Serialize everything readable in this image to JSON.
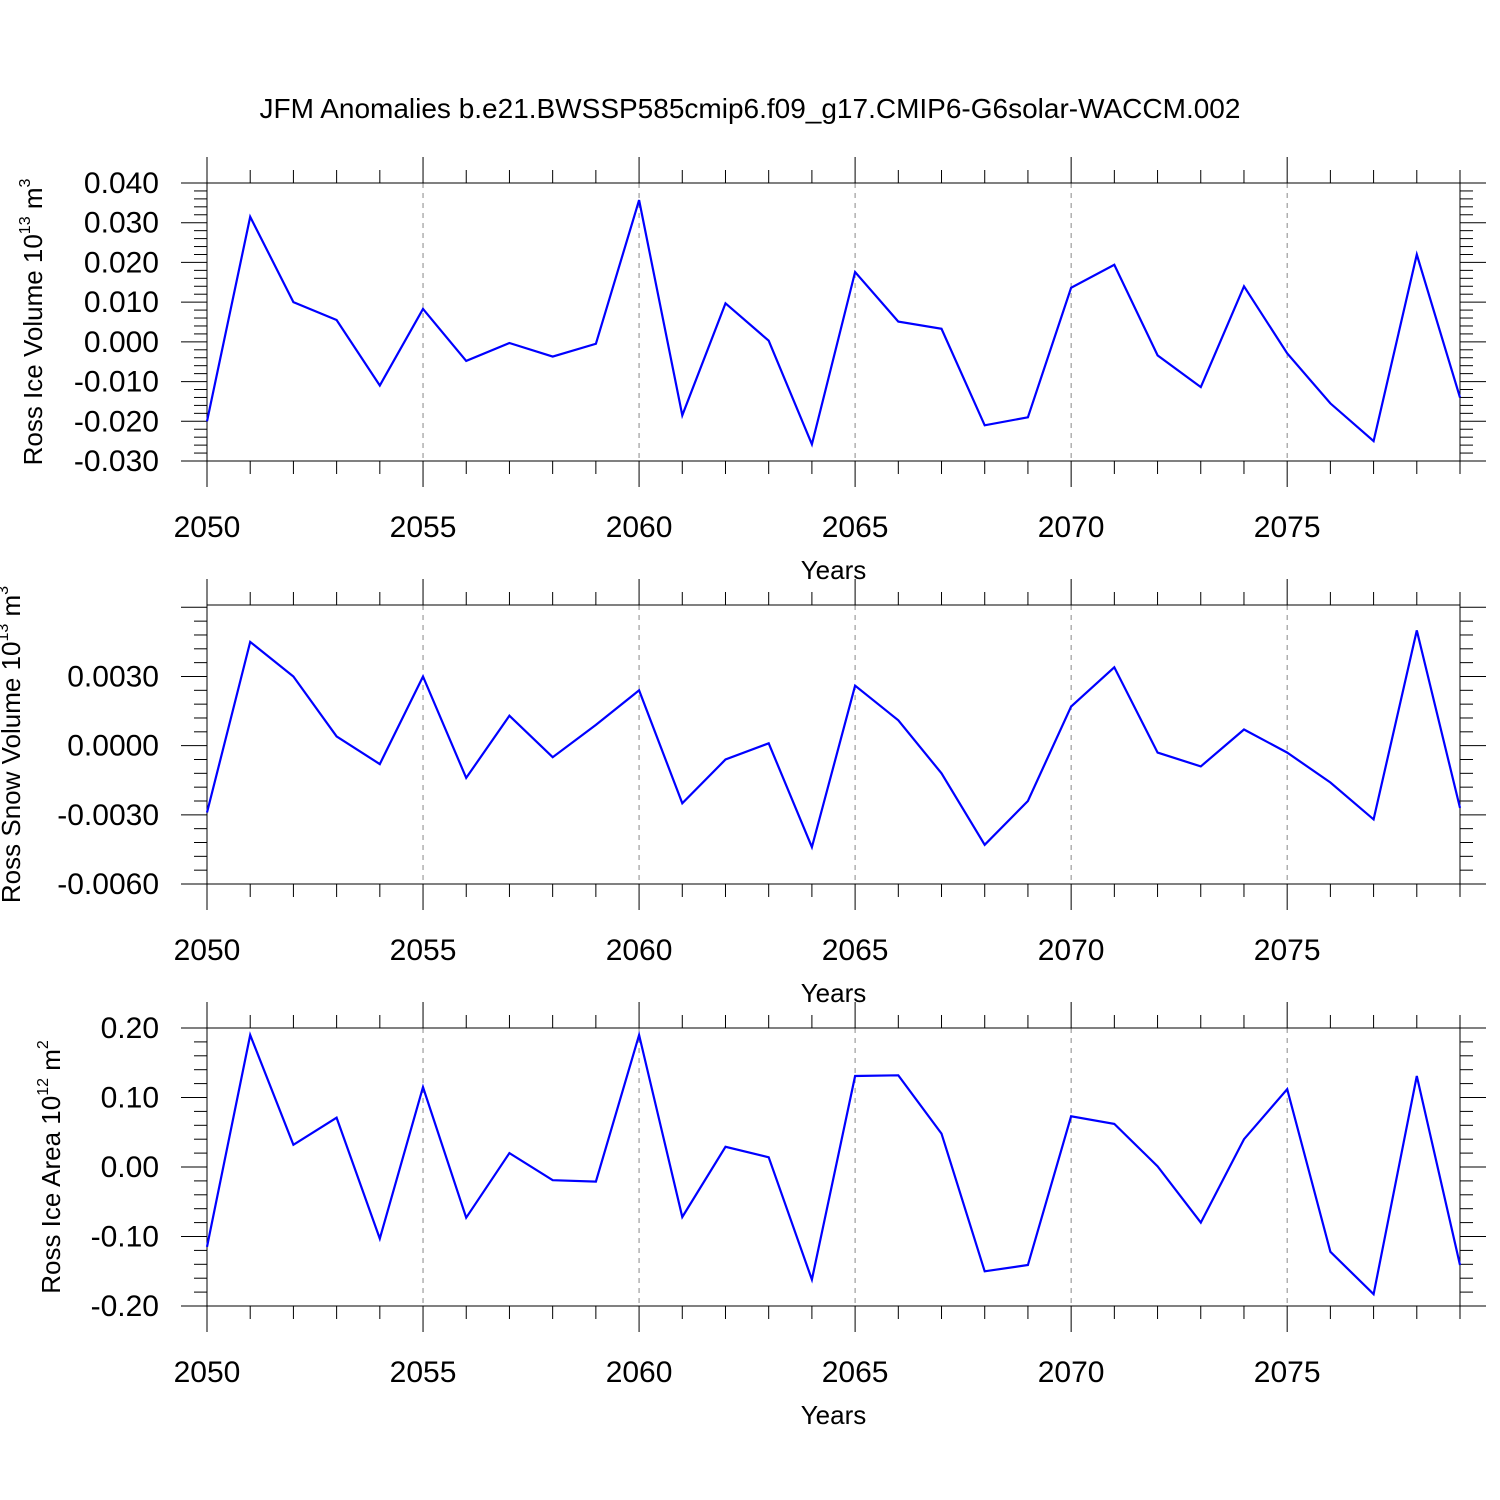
{
  "title": "JFM Anomalies b.e21.BWSSP585cmip6.f09_g17.CMIP6-G6solar-WACCM.002",
  "colors": {
    "line": "#0000ff",
    "frame": "#000000",
    "grid": "#888888"
  },
  "chart_data": [
    {
      "type": "line",
      "name": "ross-ice-volume",
      "ylabel": {
        "text": "Ross Ice Volume 10",
        "exp": "13",
        "unit": " m",
        "unit_exp": "3"
      },
      "xlabel": "Years",
      "xlim": [
        2050,
        2079
      ],
      "ylim": [
        -0.03,
        0.04
      ],
      "yticks": [
        -0.03,
        -0.02,
        -0.01,
        0.0,
        0.01,
        0.02,
        0.03,
        0.04
      ],
      "yticklabels": [
        "-0.030",
        "-0.020",
        "-0.010",
        "0.000",
        "0.010",
        "0.020",
        "0.030",
        "0.040"
      ],
      "xticks": [
        2050,
        2055,
        2060,
        2065,
        2070,
        2075
      ],
      "xticklabels": [
        "2050",
        "2055",
        "2060",
        "2065",
        "2070",
        "2075"
      ],
      "x": [
        2050,
        2051,
        2052,
        2053,
        2054,
        2055,
        2056,
        2057,
        2058,
        2059,
        2060,
        2061,
        2062,
        2063,
        2064,
        2065,
        2066,
        2067,
        2068,
        2069,
        2070,
        2071,
        2072,
        2073,
        2074,
        2075,
        2076,
        2077,
        2078,
        2079
      ],
      "values": [
        -0.02,
        0.0315,
        0.01,
        0.0055,
        -0.011,
        0.0083,
        -0.0048,
        -0.0003,
        -0.0037,
        -0.0005,
        0.0357,
        -0.0185,
        0.0097,
        0.0003,
        -0.0258,
        0.0176,
        0.0051,
        0.0033,
        -0.021,
        -0.019,
        0.0136,
        0.0194,
        -0.0034,
        -0.0114,
        0.014,
        -0.0029,
        -0.0155,
        -0.025,
        0.022,
        -0.014
      ]
    },
    {
      "type": "line",
      "name": "ross-snow-volume",
      "ylabel": {
        "text": "Ross Snow Volume 10",
        "exp": "13",
        "unit": " m",
        "unit_exp": "3"
      },
      "xlabel": "Years",
      "xlim": [
        2050,
        2079
      ],
      "ylim": [
        -0.006,
        0.0061
      ],
      "yticks": [
        -0.006,
        -0.003,
        0.0,
        0.003
      ],
      "yticklabels": [
        "-0.0060",
        "-0.0030",
        "0.0000",
        "0.0030"
      ],
      "xticks": [
        2050,
        2055,
        2060,
        2065,
        2070,
        2075
      ],
      "xticklabels": [
        "2050",
        "2055",
        "2060",
        "2065",
        "2070",
        "2075"
      ],
      "x": [
        2050,
        2051,
        2052,
        2053,
        2054,
        2055,
        2056,
        2057,
        2058,
        2059,
        2060,
        2061,
        2062,
        2063,
        2064,
        2065,
        2066,
        2067,
        2068,
        2069,
        2070,
        2071,
        2072,
        2073,
        2074,
        2075,
        2076,
        2077,
        2078,
        2079
      ],
      "values": [
        -0.0029,
        0.0045,
        0.003,
        0.0004,
        -0.0008,
        0.003,
        -0.0014,
        0.0013,
        -0.0005,
        0.0009,
        0.0024,
        -0.0025,
        -0.0006,
        0.0001,
        -0.0044,
        0.0026,
        0.0011,
        -0.0012,
        -0.0043,
        -0.0024,
        0.0017,
        0.0034,
        -0.0003,
        -0.0009,
        0.0007,
        -0.0003,
        -0.0016,
        -0.0032,
        0.005,
        -0.0027
      ]
    },
    {
      "type": "line",
      "name": "ross-ice-area",
      "ylabel": {
        "text": "Ross Ice Area 10",
        "exp": "12",
        "unit": " m",
        "unit_exp": "2"
      },
      "xlabel": "Years",
      "xlim": [
        2050,
        2079
      ],
      "ylim": [
        -0.2,
        0.2
      ],
      "yticks": [
        -0.2,
        -0.1,
        0.0,
        0.1,
        0.2
      ],
      "yticklabels": [
        "-0.20",
        "-0.10",
        "0.00",
        "0.10",
        "0.20"
      ],
      "xticks": [
        2050,
        2055,
        2060,
        2065,
        2070,
        2075
      ],
      "xticklabels": [
        "2050",
        "2055",
        "2060",
        "2065",
        "2070",
        "2075"
      ],
      "x": [
        2050,
        2051,
        2052,
        2053,
        2054,
        2055,
        2056,
        2057,
        2058,
        2059,
        2060,
        2061,
        2062,
        2063,
        2064,
        2065,
        2066,
        2067,
        2068,
        2069,
        2070,
        2071,
        2072,
        2073,
        2074,
        2075,
        2076,
        2077,
        2078,
        2079
      ],
      "values": [
        -0.115,
        0.19,
        0.032,
        0.071,
        -0.103,
        0.115,
        -0.073,
        0.02,
        -0.019,
        -0.021,
        0.19,
        -0.072,
        0.029,
        0.014,
        -0.162,
        0.131,
        0.132,
        0.048,
        -0.15,
        -0.141,
        0.073,
        0.062,
        0.001,
        -0.08,
        0.04,
        0.112,
        -0.122,
        -0.183,
        0.131,
        -0.141
      ]
    }
  ]
}
